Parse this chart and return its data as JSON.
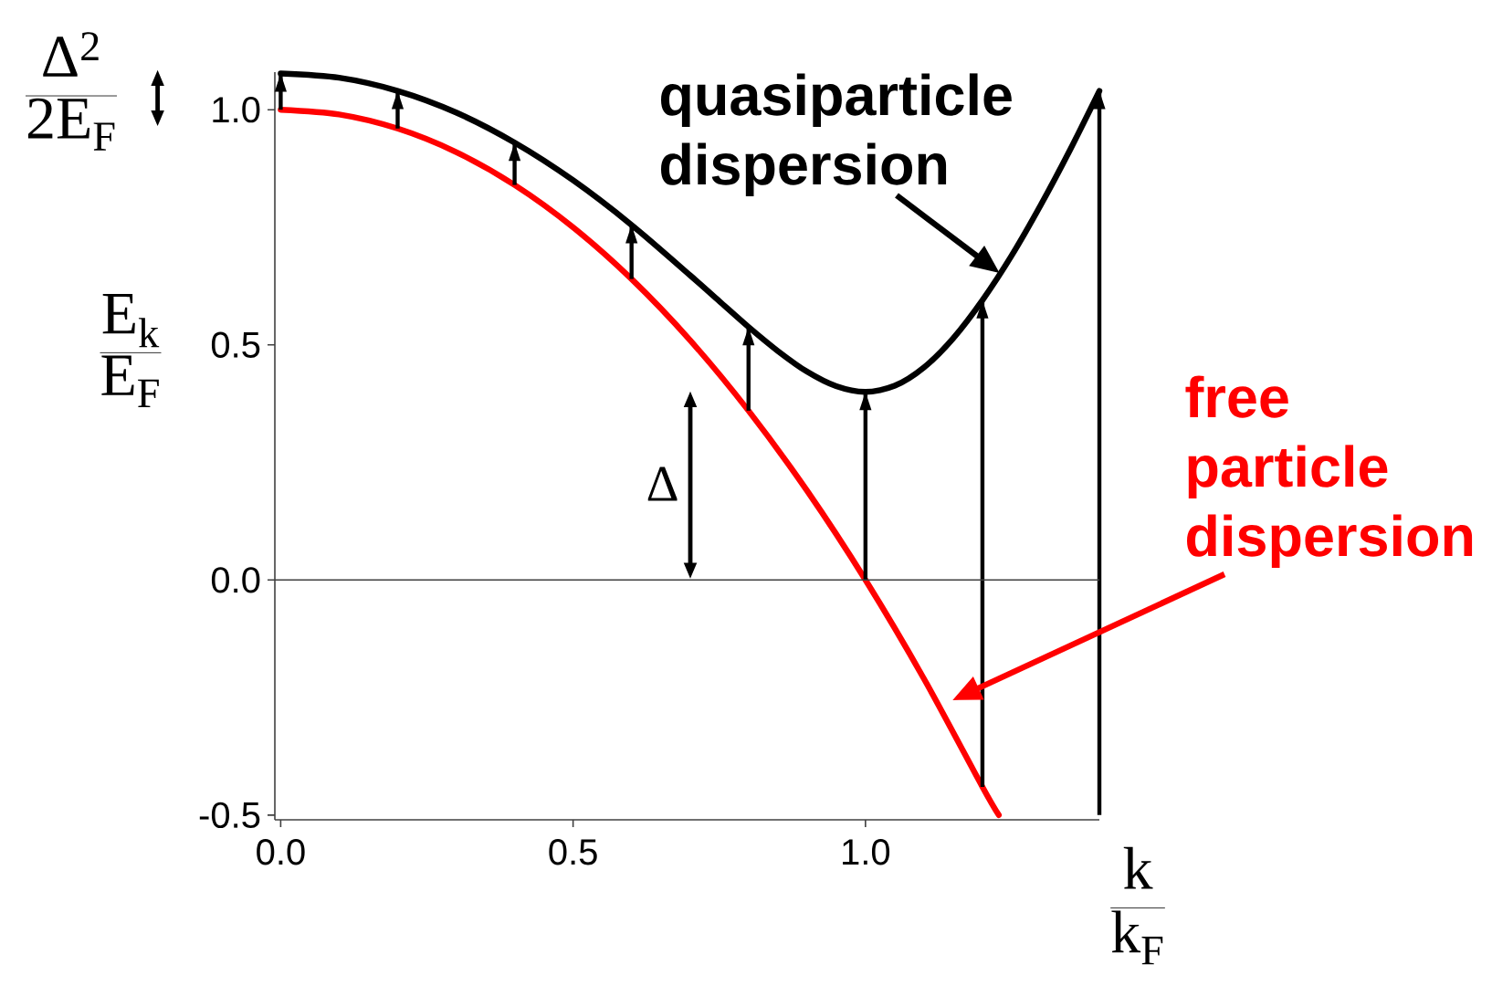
{
  "chart_data": {
    "type": "line",
    "xlabel": "\\frac{\\mathrm{k}}{\\mathrm{k_F}}",
    "ylabel": "\\frac{\\mathrm{E_k}}{\\mathrm{E_F}}",
    "xlim": [
      -0.01,
      1.4
    ],
    "ylim": [
      -0.51,
      1.08
    ],
    "xticks": [
      {
        "value": 0,
        "label": "0.0"
      },
      0.5,
      {
        "value": 1,
        "label": "1.0"
      }
    ],
    "yticks": [
      -0.5,
      {
        "value": 0,
        "label": "0.0"
      },
      0.5,
      {
        "value": 1,
        "label": "1.0"
      }
    ],
    "series": [
      {
        "name": "quasiparticle dispersion",
        "color": "#000000",
        "x": [
          0,
          0.1,
          0.2,
          0.3,
          0.4,
          0.5,
          0.6,
          0.7,
          0.75,
          0.8,
          0.85,
          0.9,
          0.95,
          1.0,
          1.05,
          1.1,
          1.15,
          1.2,
          1.25,
          1.3,
          1.35,
          1.4
        ],
        "values": [
          1.077,
          1.068,
          1.04,
          0.994,
          0.93,
          0.85,
          0.755,
          0.648,
          0.593,
          0.538,
          0.487,
          0.443,
          0.412,
          0.4,
          0.413,
          0.452,
          0.514,
          0.595,
          0.69,
          0.798,
          0.915,
          1.04
        ]
      },
      {
        "name": "free particle dispersion",
        "color": "#ff0000",
        "x": [
          0,
          0.1,
          0.2,
          0.3,
          0.4,
          0.5,
          0.6,
          0.7,
          0.8,
          0.9,
          1.0,
          1.1,
          1.2,
          1.228
        ],
        "values": [
          1.0,
          0.99,
          0.96,
          0.91,
          0.84,
          0.75,
          0.64,
          0.51,
          0.36,
          0.19,
          0.0,
          -0.21,
          -0.44,
          -0.5
        ]
      },
      {
        "type": "bar",
        "color": "#000000",
        "x": [
          0,
          0.2,
          0.4,
          0.6,
          0.8,
          1.0,
          1.2,
          1.4
        ],
        "base": [
          1.0,
          0.96,
          0.84,
          0.64,
          0.36,
          0.0,
          -0.44,
          -0.5
        ],
        "values": [
          0.077,
          0.08,
          0.09,
          0.115,
          0.178,
          0.4,
          1.035,
          1.54
        ]
      }
    ],
    "ref_lines": [
      {
        "axis": "y",
        "value": 0,
        "color": "#404040"
      }
    ],
    "annotations": [
      "\\mathrm{Δ}",
      "\\frac{\\mathrm{Δ^2}}{\\mathrm{2E_F}}"
    ]
  }
}
